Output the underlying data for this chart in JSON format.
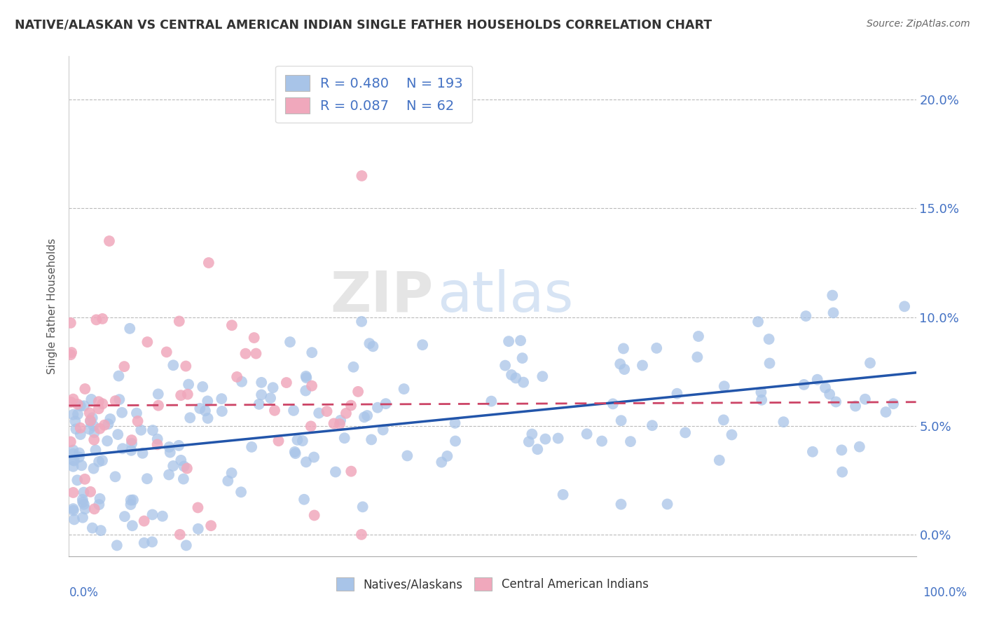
{
  "title": "NATIVE/ALASKAN VS CENTRAL AMERICAN INDIAN SINGLE FATHER HOUSEHOLDS CORRELATION CHART",
  "source": "Source: ZipAtlas.com",
  "ylabel": "Single Father Households",
  "xlim": [
    0,
    100
  ],
  "ylim": [
    -1,
    22
  ],
  "ytick_values": [
    0,
    5,
    10,
    15,
    20
  ],
  "watermark_zip": "ZIP",
  "watermark_atlas": "atlas",
  "legend_bottom": [
    "Natives/Alaskans",
    "Central American Indians"
  ],
  "blue_scatter_color": "#a8c4e8",
  "pink_scatter_color": "#f0a8bc",
  "blue_line_color": "#2255aa",
  "pink_line_color": "#cc4466",
  "blue_R": 0.48,
  "blue_N": 193,
  "pink_R": 0.087,
  "pink_N": 62,
  "grid_color": "#cccccc",
  "background_color": "#ffffff",
  "title_color": "#333333",
  "text_color_blue": "#4472c4",
  "seed": 42
}
